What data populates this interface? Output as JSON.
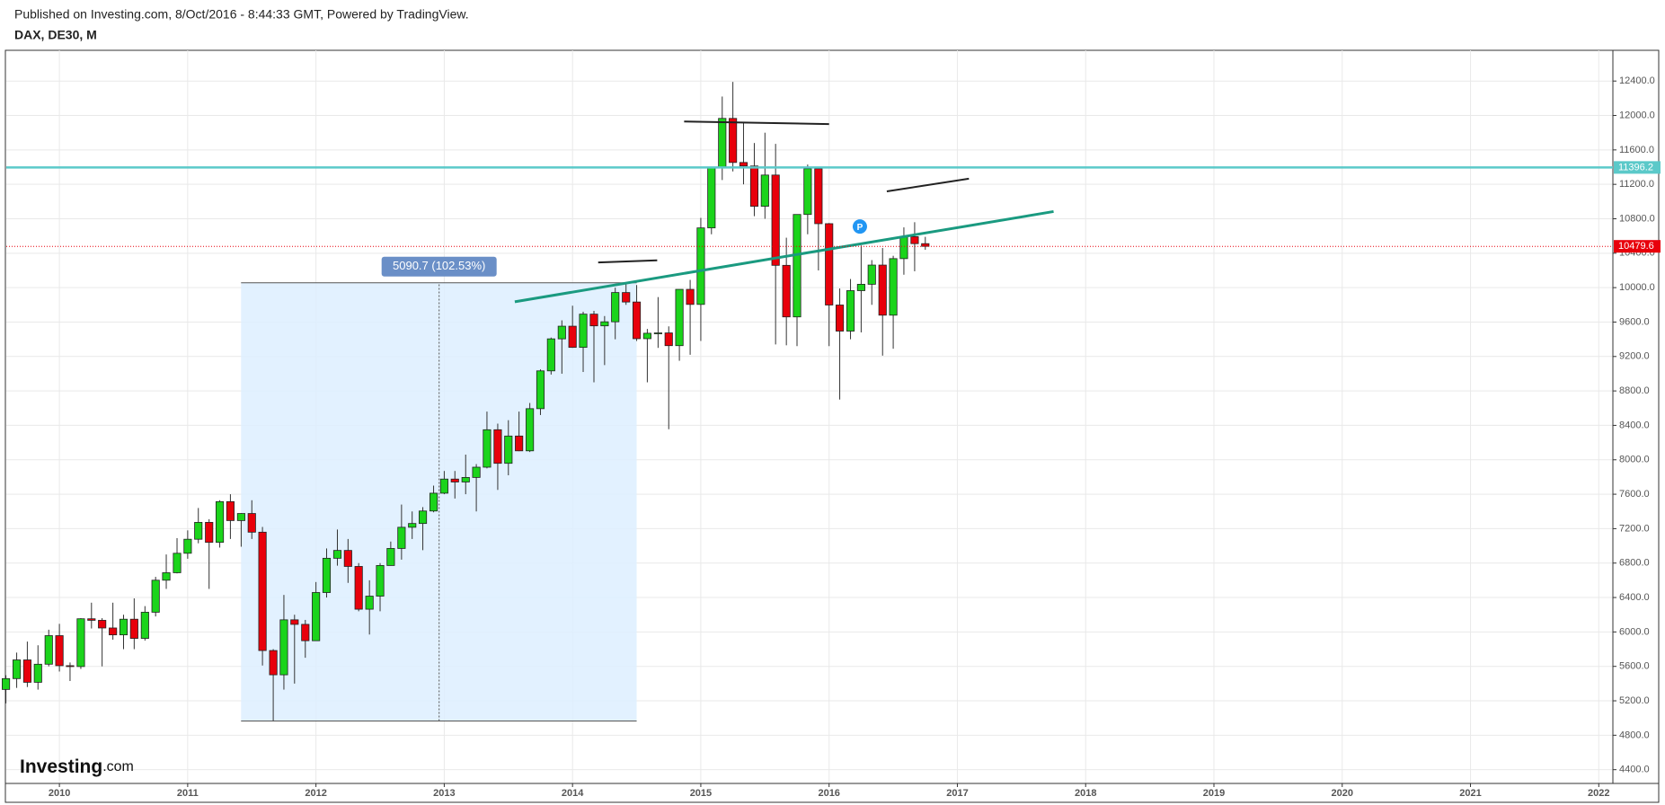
{
  "header": {
    "published": "Published on Investing.com, 8/Oct/2016 - 8:44:33 GMT, Powered by TradingView.",
    "symbol": "DAX, DE30, M"
  },
  "logo": {
    "brand": "Investing",
    "suffix": ".com"
  },
  "chart_data": {
    "type": "candlestick",
    "x": [
      2009.583,
      2009.667,
      2009.75,
      2009.833,
      2009.917,
      2010.0,
      2010.083,
      2010.167,
      2010.25,
      2010.333,
      2010.417,
      2010.5,
      2010.583,
      2010.667,
      2010.75,
      2010.833,
      2010.917,
      2011.0,
      2011.083,
      2011.167,
      2011.25,
      2011.333,
      2011.417,
      2011.5,
      2011.583,
      2011.667,
      2011.75,
      2011.833,
      2011.917,
      2012.0,
      2012.083,
      2012.167,
      2012.25,
      2012.333,
      2012.417,
      2012.5,
      2012.583,
      2012.667,
      2012.75,
      2012.833,
      2012.917,
      2013.0,
      2013.083,
      2013.167,
      2013.25,
      2013.333,
      2013.417,
      2013.5,
      2013.583,
      2013.667,
      2013.75,
      2013.833,
      2013.917,
      2014.0,
      2014.083,
      2014.167,
      2014.25,
      2014.333,
      2014.417,
      2014.5,
      2014.583,
      2014.667,
      2014.75,
      2014.833,
      2014.917,
      2015.0,
      2015.083,
      2015.167,
      2015.25,
      2015.333,
      2015.417,
      2015.5,
      2015.583,
      2015.667,
      2015.75,
      2015.833,
      2015.917,
      2016.0,
      2016.083,
      2016.167,
      2016.25,
      2016.333,
      2016.417,
      2016.5,
      2016.583,
      2016.667,
      2016.75
    ],
    "open": [
      5332,
      5458,
      5675,
      5415,
      5625,
      5957,
      5608,
      5598,
      6153,
      6135,
      6046,
      5966,
      6148,
      5925,
      6229,
      6601,
      6688,
      6914,
      7077,
      7273,
      7041,
      7514,
      7294,
      7376,
      7159,
      5784,
      5502,
      6141,
      6088,
      5898,
      6458,
      6856,
      6947,
      6761,
      6264,
      6416,
      6772,
      6970,
      7216,
      7260,
      7405,
      7612,
      7776,
      7742,
      7795,
      7914,
      8349,
      7959,
      8276,
      8104,
      8594,
      9033,
      9405,
      9552,
      9306,
      9692,
      9556,
      9603,
      9943,
      9833,
      9407,
      9470,
      9474,
      9326,
      9980,
      9805,
      10694,
      11401,
      11966,
      11454,
      11413,
      10945,
      11308,
      10259,
      9660,
      10850,
      11382,
      10743,
      9798,
      9495,
      9965,
      10039,
      10262,
      9680,
      10337,
      10592,
      10511
    ],
    "high": [
      5497,
      5760,
      5888,
      5845,
      6026,
      6094,
      5645,
      6160,
      6340,
      6160,
      6340,
      6200,
      6390,
      6300,
      6640,
      6900,
      7090,
      7180,
      7440,
      7310,
      7530,
      7600,
      7380,
      7530,
      7220,
      5800,
      6430,
      6200,
      6140,
      6580,
      6970,
      7190,
      7080,
      6800,
      6600,
      6800,
      7050,
      7480,
      7400,
      7450,
      7700,
      7870,
      7870,
      8060,
      7950,
      8560,
      8420,
      8460,
      8560,
      8660,
      9050,
      9420,
      9620,
      9790,
      9720,
      9730,
      9670,
      10000,
      10050,
      10030,
      9520,
      9890,
      9550,
      9980,
      10090,
      10810,
      11400,
      12220,
      12390,
      11920,
      11680,
      11800,
      11670,
      10580,
      10850,
      11430,
      11400,
      10750,
      9990,
      10100,
      10490,
      10320,
      10460,
      10370,
      10700,
      10760,
      10590
    ],
    "low": [
      5170,
      5350,
      5360,
      5330,
      5600,
      5540,
      5430,
      5570,
      6040,
      5600,
      5910,
      5800,
      5800,
      5900,
      6180,
      6500,
      6680,
      6850,
      7030,
      6500,
      6980,
      7080,
      6990,
      7080,
      5610,
      4966,
      5330,
      5400,
      5700,
      5900,
      6400,
      6770,
      6570,
      6240,
      5970,
      6240,
      6770,
      6840,
      7080,
      6950,
      7390,
      7600,
      7550,
      7600,
      7400,
      7900,
      7650,
      7820,
      8100,
      8090,
      8520,
      8990,
      9000,
      9300,
      9020,
      8900,
      9100,
      9400,
      9800,
      9380,
      8900,
      9300,
      8355,
      9150,
      9220,
      9380,
      10620,
      11250,
      11350,
      11200,
      10830,
      10800,
      9340,
      9330,
      9320,
      10620,
      10200,
      9320,
      8700,
      9400,
      9480,
      9800,
      9210,
      9290,
      10150,
      10190,
      10440
    ],
    "close": [
      5458,
      5675,
      5415,
      5625,
      5957,
      5608,
      5598,
      6153,
      6135,
      6046,
      5966,
      6148,
      5925,
      6229,
      6601,
      6688,
      6914,
      7077,
      7273,
      7041,
      7514,
      7294,
      7376,
      7159,
      5784,
      5502,
      6141,
      6088,
      5898,
      6458,
      6856,
      6947,
      6761,
      6264,
      6416,
      6772,
      6970,
      7216,
      7260,
      7405,
      7612,
      7776,
      7742,
      7795,
      7914,
      8349,
      7959,
      8276,
      8104,
      8594,
      9033,
      9405,
      9552,
      9306,
      9692,
      9556,
      9603,
      9943,
      9833,
      9407,
      9470,
      9474,
      9326,
      9980,
      9805,
      10694,
      11401,
      11966,
      11454,
      11413,
      10945,
      11308,
      10259,
      9660,
      10850,
      11382,
      10743,
      9798,
      9495,
      9965,
      10039,
      10262,
      9680,
      10337,
      10592,
      10511,
      10480
    ],
    "up_color": "#1bd41b",
    "down_color": "#e8000b",
    "xlim": [
      2009.586,
      2022.11
    ],
    "xticks": [
      2010,
      2011,
      2012,
      2013,
      2014,
      2015,
      2016,
      2017,
      2018,
      2019,
      2020,
      2021,
      2022
    ],
    "ylim": [
      4240,
      12757
    ],
    "yticks": [
      {
        "value": 4400,
        "label": "4400.0"
      },
      {
        "value": 4800,
        "label": "4800.0"
      },
      {
        "value": 5200,
        "label": "5200.0"
      },
      {
        "value": 5600,
        "label": "5600.0"
      },
      {
        "value": 6000,
        "label": "6000.0"
      },
      {
        "value": 6400,
        "label": "6400.0"
      },
      {
        "value": 6800,
        "label": "6800.0"
      },
      {
        "value": 7200,
        "label": "7200.0"
      },
      {
        "value": 7600,
        "label": "7600.0"
      },
      {
        "value": 8000,
        "label": "8000.0"
      },
      {
        "value": 8400,
        "label": "8400.0"
      },
      {
        "value": 8800,
        "label": "8800.0"
      },
      {
        "value": 9200,
        "label": "9200.0"
      },
      {
        "value": 9600,
        "label": "9600.0"
      },
      {
        "value": 10000,
        "label": "10000.0"
      },
      {
        "value": 10400,
        "label": "10400.0"
      },
      {
        "value": 10800,
        "label": "10800.0"
      },
      {
        "value": 11200,
        "label": "11200.0"
      },
      {
        "value": 11600,
        "label": "11600.0"
      },
      {
        "value": 12000,
        "label": "12000.0"
      },
      {
        "value": 12400,
        "label": "12400.0"
      }
    ],
    "grid": true,
    "horizontal_lines": [
      {
        "value": 11396.2,
        "color": "#5bc9c9",
        "style": "solid"
      },
      {
        "value": 10479.6,
        "color": "#e8000b",
        "style": "dotted"
      }
    ],
    "measure": {
      "x": [
        2011.416,
        2014.5
      ],
      "y": [
        4965.8,
        10056.5
      ],
      "x_mid": 2012.96,
      "label": "5090.7 (102.53%)",
      "color": "#6a8fc7"
    },
    "trend_lines": [
      {
        "x": [
          2013.55,
          2017.75
        ],
        "y": [
          9836,
          10884
        ],
        "color": "#1a9a80"
      },
      {
        "x": [
          2014.87,
          2016.0
        ],
        "y": [
          11930,
          11900
        ],
        "color": "#222222"
      },
      {
        "x": [
          2016.45,
          2017.09
        ],
        "y": [
          11118,
          11266
        ],
        "color": "#222222"
      },
      {
        "x": [
          2014.2,
          2014.66
        ],
        "y": [
          10292,
          10317
        ],
        "color": "#222222"
      }
    ],
    "marker": {
      "x": 2016.24,
      "y": 10710,
      "label": "P",
      "color": "#2196f3"
    }
  }
}
